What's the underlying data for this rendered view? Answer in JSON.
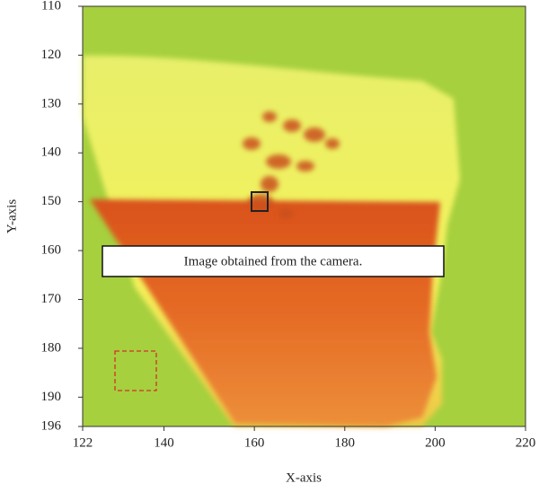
{
  "chart_data": {
    "type": "image",
    "annotation": "Image obtained from the camera.",
    "xlabel": "X-axis",
    "ylabel": "Y-axis",
    "xlim": [
      122,
      220
    ],
    "xticks": [
      122,
      140,
      160,
      180,
      200,
      220
    ],
    "ylim": [
      110,
      196
    ],
    "yticks": [
      110,
      120,
      130,
      140,
      150,
      160,
      170,
      180,
      190,
      196
    ]
  }
}
